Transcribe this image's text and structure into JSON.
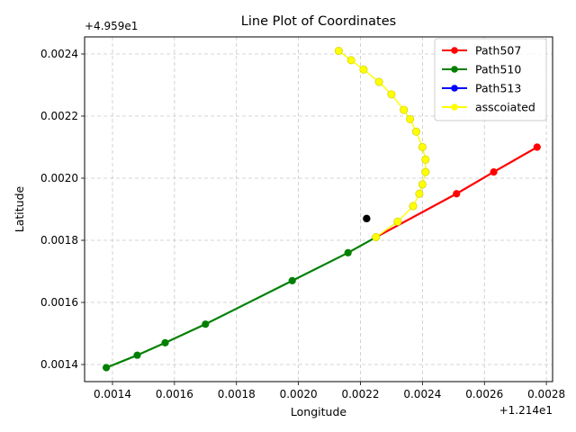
{
  "chart_data": {
    "type": "line",
    "title": "Line Plot of Coordinates",
    "xlabel": "Longitude",
    "ylabel": "Latitude",
    "x_offset_label": "+1.214e1",
    "y_offset_label": "+4.959e1",
    "x_offset": 12.14,
    "y_offset": 49.59,
    "xlim": [
      0.00131,
      0.00282
    ],
    "ylim": [
      0.001345,
      0.002455
    ],
    "x_ticks": [
      0.0014,
      0.0016,
      0.0018,
      0.002,
      0.0022,
      0.0024,
      0.0026,
      0.0028
    ],
    "x_tick_labels": [
      "0.0014",
      "0.0016",
      "0.0018",
      "0.0020",
      "0.0022",
      "0.0024",
      "0.0026",
      "0.0028"
    ],
    "y_ticks": [
      0.0014,
      0.0016,
      0.0018,
      0.002,
      0.0022,
      0.0024
    ],
    "y_tick_labels": [
      "0.0014",
      "0.0016",
      "0.0018",
      "0.0020",
      "0.0022",
      "0.0024"
    ],
    "grid": true,
    "legend_position": "top-right",
    "series": [
      {
        "name": "Path507",
        "color": "#ff0000",
        "x": [
          0.00225,
          0.00251,
          0.00263,
          0.00277
        ],
        "y": [
          0.00181,
          0.00195,
          0.00202,
          0.0021
        ]
      },
      {
        "name": "Path510",
        "color": "#008000",
        "x": [
          0.00138,
          0.00148,
          0.00157,
          0.0017,
          0.00198,
          0.00216,
          0.00225
        ],
        "y": [
          0.00139,
          0.00143,
          0.00147,
          0.00153,
          0.00167,
          0.00176,
          0.00181
        ]
      },
      {
        "name": "Path513",
        "color": "#0000ff",
        "x": [],
        "y": []
      },
      {
        "name": "asscoiated",
        "color": "#ffff00",
        "x": [
          0.00225,
          0.00232,
          0.00237,
          0.00239,
          0.0024,
          0.00241,
          0.00241,
          0.0024,
          0.00238,
          0.00236,
          0.00234,
          0.0023,
          0.00226,
          0.00221,
          0.00217,
          0.00213
        ],
        "y": [
          0.00181,
          0.00186,
          0.00191,
          0.00195,
          0.00198,
          0.00202,
          0.00206,
          0.0021,
          0.00215,
          0.00219,
          0.00222,
          0.00227,
          0.00231,
          0.00235,
          0.00238,
          0.00241
        ]
      }
    ],
    "extra_points": [
      {
        "x": 0.00222,
        "y": 0.00187,
        "color": "#000000"
      }
    ]
  }
}
